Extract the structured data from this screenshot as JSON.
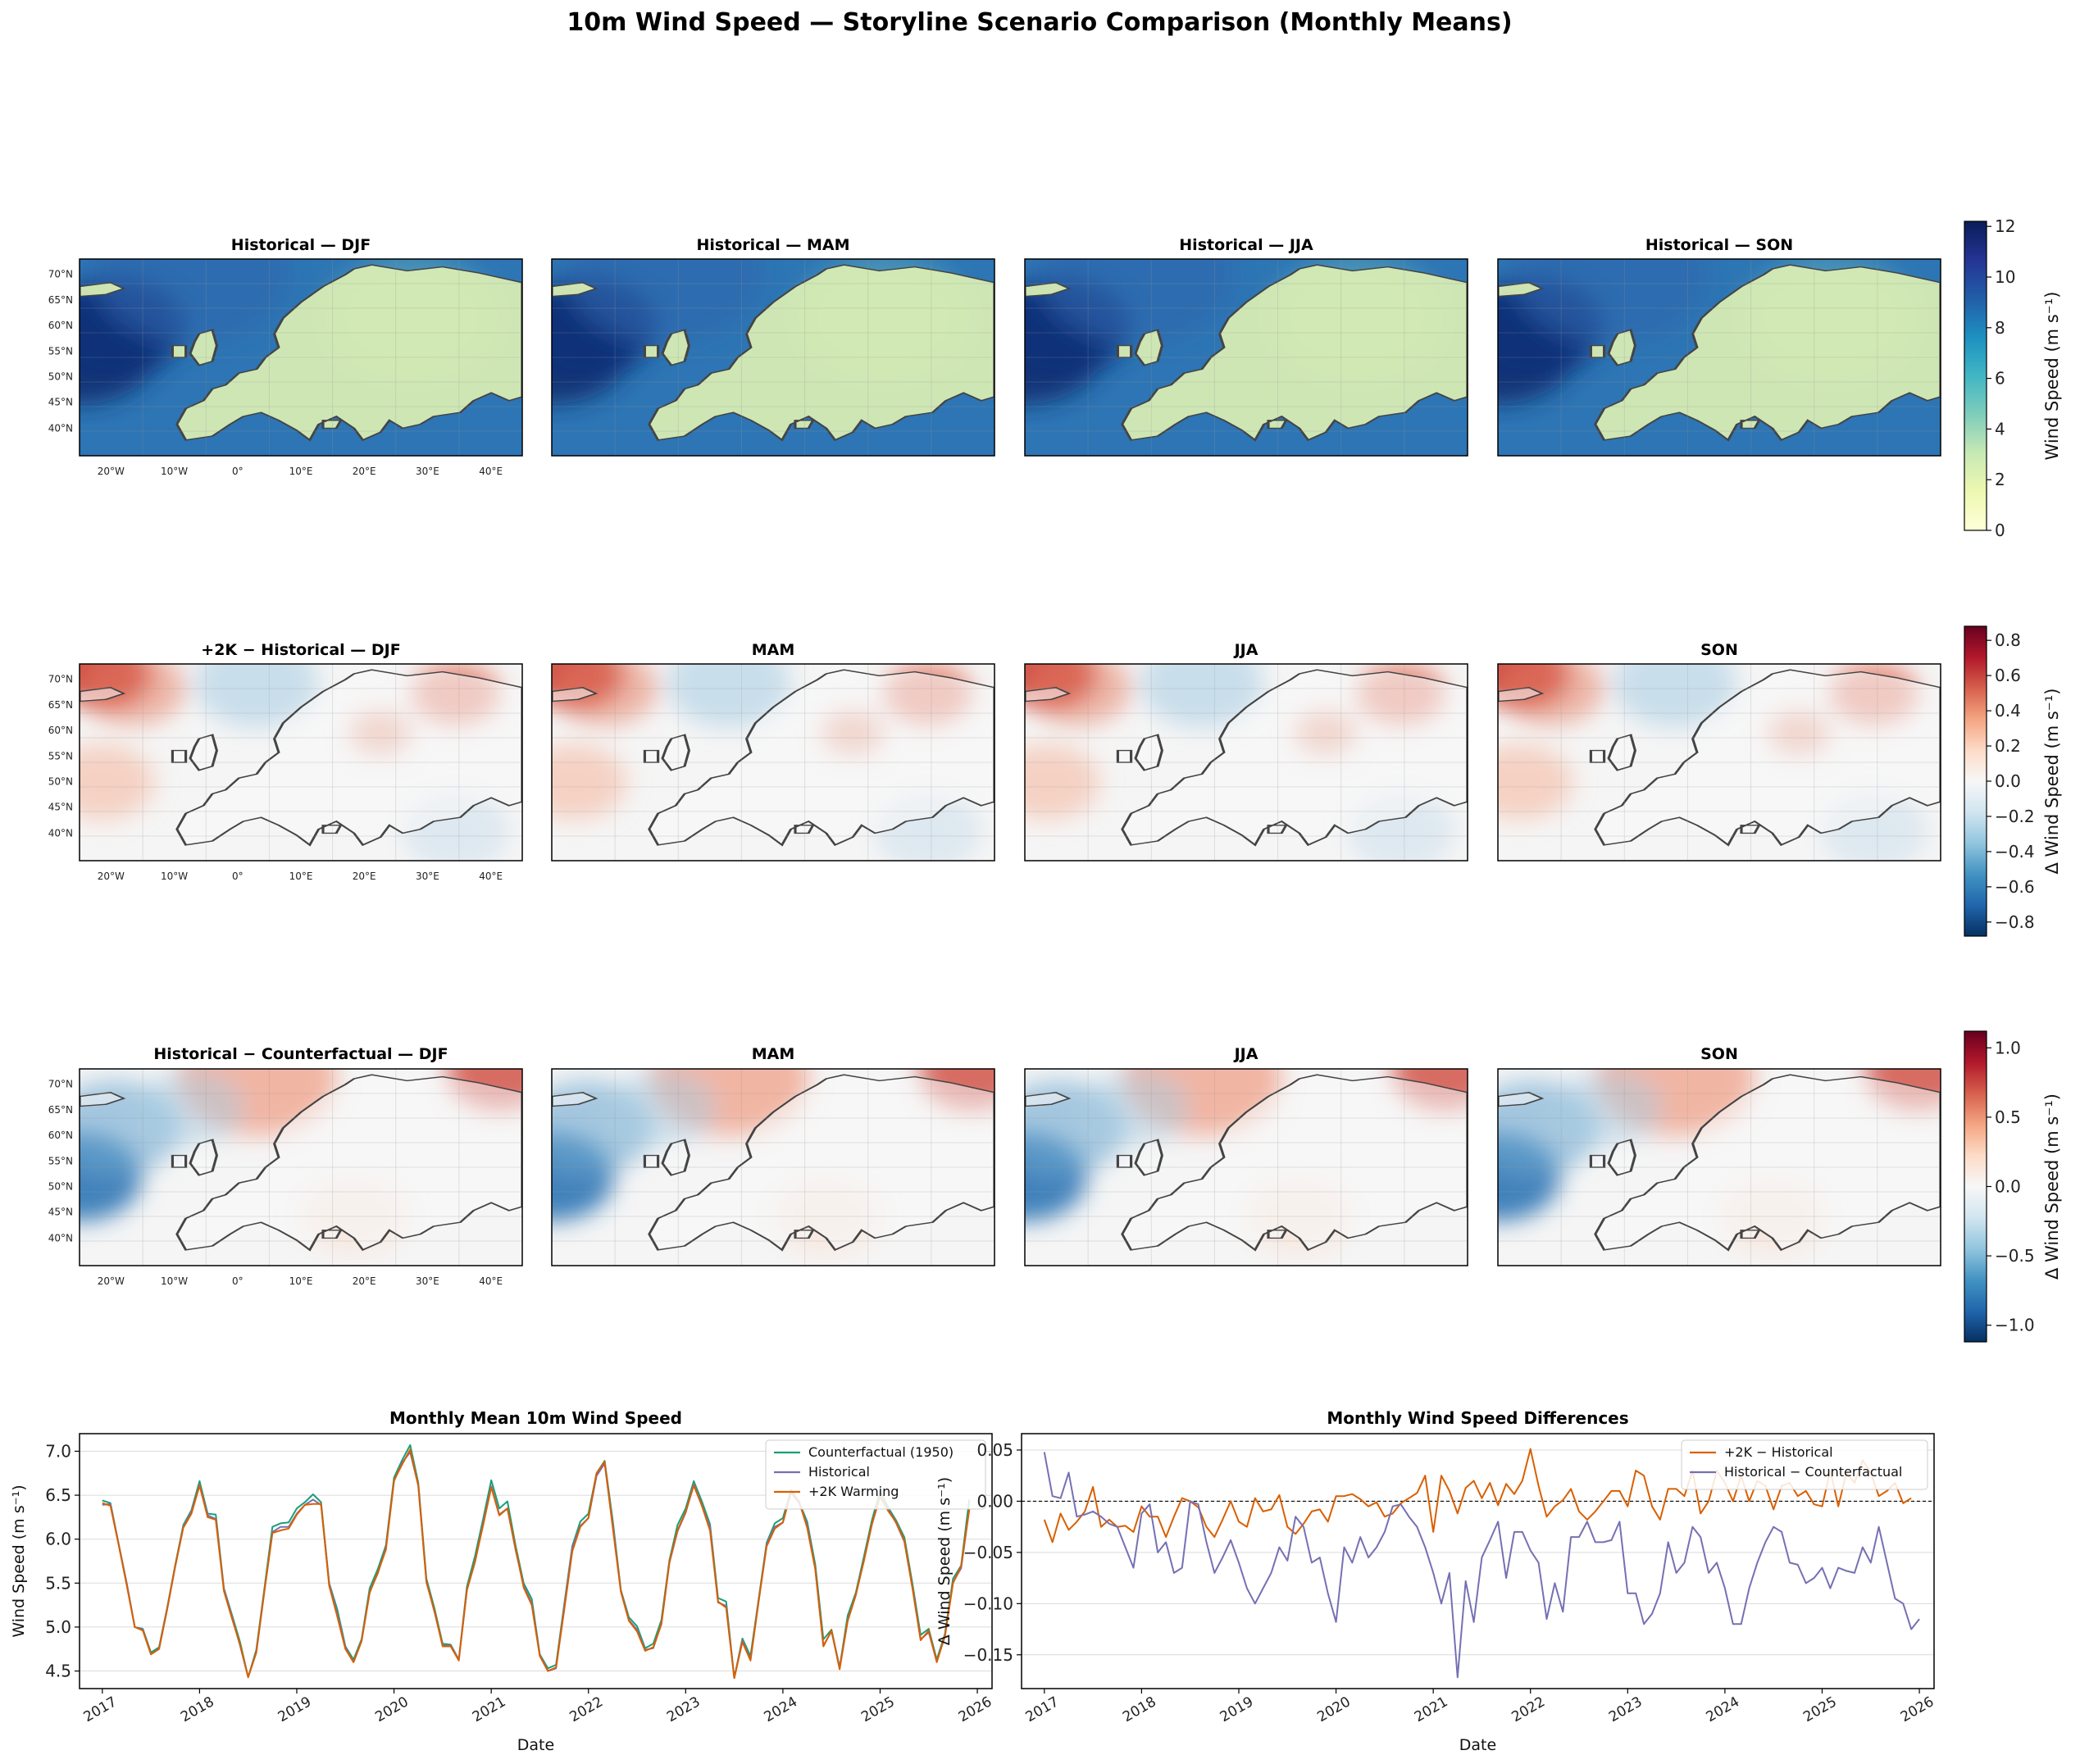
{
  "figure": {
    "suptitle": "10m Wind Speed — Storyline Scenario Comparison (Monthly Means)"
  },
  "map_rows": [
    {
      "id": "historical",
      "titles": [
        "Historical — DJF",
        "Historical — MAM",
        "Historical — JJA",
        "Historical — SON"
      ],
      "colormap": "YlGnBu",
      "colorbar": {
        "label": "Wind Speed (m s⁻¹)",
        "range": [
          0,
          12.2
        ],
        "ticks": [
          "0",
          "2",
          "4",
          "6",
          "8",
          "10",
          "12"
        ],
        "tick_values": [
          0,
          2,
          4,
          6,
          8,
          10,
          12
        ]
      }
    },
    {
      "id": "plus2k_minus_hist",
      "titles": [
        "+2K − Historical — DJF",
        "MAM",
        "JJA",
        "SON"
      ],
      "colormap": "RdBu_r",
      "colorbar": {
        "label": "Δ Wind Speed (m s⁻¹)",
        "range": [
          -0.88,
          0.88
        ],
        "ticks": [
          "−0.8",
          "−0.6",
          "−0.4",
          "−0.2",
          "0.0",
          "0.2",
          "0.4",
          "0.6",
          "0.8"
        ],
        "tick_values": [
          -0.8,
          -0.6,
          -0.4,
          -0.2,
          0,
          0.2,
          0.4,
          0.6,
          0.8
        ]
      }
    },
    {
      "id": "hist_minus_counterfactual",
      "titles": [
        "Historical − Counterfactual — DJF",
        "MAM",
        "JJA",
        "SON"
      ],
      "colormap": "RdBu_r",
      "colorbar": {
        "label": "Δ Wind Speed (m s⁻¹)",
        "range": [
          -1.12,
          1.12
        ],
        "ticks": [
          "−1.0",
          "−0.5",
          "0.0",
          "0.5",
          "1.0"
        ],
        "tick_values": [
          -1,
          -0.5,
          0,
          0.5,
          1
        ]
      }
    }
  ],
  "map_axes": {
    "lat_ticks": [
      "40°N",
      "45°N",
      "50°N",
      "55°N",
      "60°N",
      "65°N",
      "70°N"
    ],
    "lon_ticks": [
      "20°W",
      "10°W",
      "0°",
      "10°E",
      "20°E",
      "30°E",
      "40°E"
    ]
  },
  "chart_data": [
    {
      "type": "line",
      "title": "Monthly Mean 10m Wind Speed",
      "xlabel": "Date",
      "ylabel": "Wind Speed (m s⁻¹)",
      "x_tick_labels": [
        "2017",
        "2018",
        "2019",
        "2020",
        "2021",
        "2022",
        "2023",
        "2024",
        "2025",
        "2026"
      ],
      "y_ticks": [
        4.5,
        5.0,
        5.5,
        6.0,
        6.5,
        7.0
      ],
      "y_tick_labels": [
        "4.5",
        "5.0",
        "5.5",
        "6.0",
        "6.5",
        "7.0"
      ],
      "ylim": [
        4.3,
        7.2
      ],
      "x_start": "2017-01",
      "legend_location": "upper right",
      "series": [
        {
          "name": "Counterfactual (1950)",
          "color": "#1b9e77",
          "values": [
            6.44,
            6.41,
            5.95,
            5.5,
            5.0,
            4.98,
            4.71,
            4.77,
            5.22,
            5.71,
            6.16,
            6.33,
            6.66,
            6.29,
            6.28,
            5.44,
            5.14,
            4.83,
            4.43,
            4.74,
            5.44,
            6.14,
            6.18,
            6.19,
            6.35,
            6.42,
            6.51,
            6.42,
            5.5,
            5.2,
            4.78,
            4.63,
            4.86,
            5.44,
            5.66,
            5.93,
            6.7,
            6.9,
            7.07,
            6.64,
            5.55,
            5.21,
            4.81,
            4.8,
            4.63,
            5.46,
            5.81,
            6.23,
            6.67,
            6.35,
            6.43,
            5.93,
            5.5,
            5.32,
            4.69,
            4.53,
            4.57,
            5.25,
            5.92,
            6.2,
            6.29,
            6.75,
            6.89,
            6.21,
            5.42,
            5.11,
            5.01,
            4.76,
            4.81,
            5.08,
            5.76,
            6.16,
            6.35,
            6.66,
            6.43,
            6.17,
            5.33,
            5.29,
            4.42,
            4.87,
            4.67,
            5.31,
            5.96,
            6.18,
            6.24,
            6.56,
            6.42,
            6.2,
            5.71,
            4.86,
            4.97,
            4.54,
            5.13,
            5.39,
            5.8,
            6.22,
            6.55,
            6.36,
            6.21,
            6.02,
            5.49,
            4.91,
            4.98,
            4.63,
            4.92,
            5.55,
            5.7,
            6.45
          ]
        },
        {
          "name": "Historical",
          "color": "#7570b3",
          "values": [
            6.39,
            6.4,
            5.95,
            5.5,
            5.0,
            4.97,
            4.69,
            4.75,
            5.21,
            5.69,
            6.14,
            6.31,
            6.62,
            6.27,
            6.23,
            5.43,
            5.12,
            4.79,
            4.43,
            4.71,
            5.41,
            6.08,
            6.14,
            6.14,
            6.29,
            6.39,
            6.45,
            6.39,
            5.49,
            5.15,
            4.77,
            4.6,
            4.84,
            5.4,
            5.61,
            5.9,
            6.66,
            6.87,
            6.99,
            6.61,
            5.52,
            5.17,
            4.79,
            4.79,
            4.63,
            5.42,
            5.74,
            6.18,
            6.6,
            6.28,
            6.35,
            5.88,
            5.47,
            5.27,
            4.68,
            4.5,
            4.53,
            5.22,
            5.9,
            6.15,
            6.24,
            6.72,
            6.86,
            6.16,
            5.41,
            5.08,
            4.97,
            4.74,
            4.76,
            5.04,
            5.73,
            6.09,
            6.3,
            6.63,
            6.38,
            6.14,
            5.28,
            5.24,
            4.42,
            4.85,
            4.63,
            5.28,
            5.94,
            6.14,
            6.19,
            6.53,
            6.41,
            6.16,
            5.66,
            4.79,
            4.95,
            4.54,
            5.07,
            5.36,
            5.76,
            6.17,
            6.49,
            6.34,
            6.18,
            5.97,
            5.44,
            4.86,
            4.94,
            4.61,
            4.89,
            5.51,
            5.67,
            6.34
          ]
        },
        {
          "name": "+2K Warming",
          "color": "#d95f02",
          "values": [
            6.41,
            6.38,
            5.94,
            5.48,
            5.0,
            4.96,
            4.69,
            4.75,
            5.2,
            5.7,
            6.13,
            6.29,
            6.61,
            6.25,
            6.22,
            5.41,
            5.1,
            4.8,
            4.43,
            4.71,
            5.41,
            6.07,
            6.1,
            6.12,
            6.28,
            6.39,
            6.4,
            6.4,
            5.47,
            5.12,
            4.75,
            4.6,
            4.84,
            5.39,
            5.62,
            5.88,
            6.67,
            6.85,
            7.02,
            6.61,
            5.51,
            5.18,
            4.78,
            4.78,
            4.62,
            5.42,
            5.75,
            6.16,
            6.59,
            6.27,
            6.35,
            5.9,
            5.45,
            5.25,
            4.67,
            4.5,
            4.54,
            5.19,
            5.86,
            6.14,
            6.24,
            6.75,
            6.88,
            6.13,
            5.4,
            5.07,
            4.95,
            4.73,
            4.77,
            5.03,
            5.74,
            6.1,
            6.31,
            6.61,
            6.38,
            6.1,
            5.29,
            5.22,
            4.42,
            4.83,
            4.62,
            5.29,
            5.92,
            6.12,
            6.19,
            6.54,
            6.43,
            6.13,
            5.66,
            4.78,
            4.96,
            4.52,
            5.07,
            5.37,
            5.75,
            6.18,
            6.48,
            6.32,
            6.19,
            5.98,
            5.44,
            4.85,
            4.96,
            4.6,
            4.9,
            5.5,
            5.69,
            6.34
          ]
        }
      ]
    },
    {
      "type": "line",
      "title": "Monthly Wind Speed Differences",
      "xlabel": "Date",
      "ylabel": "Δ Wind Speed (m s⁻¹)",
      "x_tick_labels": [
        "2017",
        "2018",
        "2019",
        "2020",
        "2021",
        "2022",
        "2023",
        "2024",
        "2025",
        "2026"
      ],
      "y_ticks": [
        -0.15,
        -0.1,
        -0.05,
        0.0,
        0.05
      ],
      "y_tick_labels": [
        "−0.15",
        "−0.10",
        "−0.05",
        "0.00",
        "0.05"
      ],
      "ylim": [
        -0.183,
        0.066
      ],
      "x_start": "2017-01",
      "reference_line": 0,
      "legend_location": "upper right",
      "series": [
        {
          "name": "+2K − Historical",
          "color": "#d95f02",
          "values": [
            -0.018,
            -0.04,
            -0.012,
            -0.028,
            -0.02,
            -0.01,
            0.014,
            -0.025,
            -0.018,
            -0.025,
            -0.024,
            -0.03,
            -0.005,
            -0.015,
            -0.015,
            -0.035,
            -0.015,
            0.003,
            0.0,
            -0.006,
            -0.025,
            -0.035,
            -0.018,
            0.0,
            -0.02,
            -0.025,
            0.003,
            -0.01,
            -0.008,
            0.006,
            -0.025,
            -0.032,
            -0.022,
            -0.01,
            -0.008,
            -0.02,
            0.005,
            0.005,
            0.007,
            0.002,
            -0.005,
            -0.001,
            -0.015,
            -0.012,
            -0.002,
            0.003,
            0.008,
            0.025,
            -0.03,
            0.025,
            0.01,
            -0.012,
            0.013,
            0.02,
            0.003,
            0.018,
            -0.004,
            0.017,
            0.007,
            0.02,
            0.051,
            0.015,
            -0.015,
            -0.005,
            0.001,
            0.012,
            -0.01,
            -0.018,
            -0.01,
            0.0,
            0.01,
            0.01,
            -0.005,
            0.03,
            0.025,
            -0.005,
            -0.018,
            0.012,
            0.012,
            0.005,
            0.03,
            -0.012,
            0.0,
            0.03,
            0.018,
            0.0,
            0.025,
            0.0,
            0.02,
            0.015,
            -0.008,
            0.015,
            0.018,
            0.005,
            0.01,
            -0.003,
            -0.005,
            0.03,
            -0.005,
            0.028,
            0.018,
            0.04,
            0.028,
            0.005,
            0.01,
            0.018,
            -0.002,
            0.003
          ]
        },
        {
          "name": "Historical − Counterfactual",
          "color": "#7570b3",
          "values": [
            0.048,
            0.005,
            0.003,
            0.028,
            -0.015,
            -0.013,
            -0.01,
            -0.015,
            -0.022,
            -0.025,
            -0.045,
            -0.065,
            -0.012,
            -0.003,
            -0.05,
            -0.04,
            -0.07,
            -0.065,
            0.0,
            -0.003,
            -0.04,
            -0.07,
            -0.055,
            -0.038,
            -0.06,
            -0.085,
            -0.1,
            -0.085,
            -0.07,
            -0.045,
            -0.058,
            -0.015,
            -0.025,
            -0.06,
            -0.055,
            -0.09,
            -0.118,
            -0.045,
            -0.06,
            -0.035,
            -0.055,
            -0.045,
            -0.03,
            -0.005,
            -0.003,
            -0.015,
            -0.025,
            -0.045,
            -0.07,
            -0.1,
            -0.07,
            -0.172,
            -0.078,
            -0.118,
            -0.055,
            -0.038,
            -0.02,
            -0.075,
            -0.03,
            -0.03,
            -0.048,
            -0.06,
            -0.115,
            -0.08,
            -0.108,
            -0.035,
            -0.035,
            -0.02,
            -0.04,
            -0.04,
            -0.038,
            -0.02,
            -0.09,
            -0.09,
            -0.12,
            -0.11,
            -0.09,
            -0.04,
            -0.07,
            -0.06,
            -0.025,
            -0.035,
            -0.07,
            -0.06,
            -0.085,
            -0.12,
            -0.12,
            -0.085,
            -0.06,
            -0.04,
            -0.025,
            -0.03,
            -0.06,
            -0.062,
            -0.08,
            -0.075,
            -0.065,
            -0.085,
            -0.065,
            -0.068,
            -0.07,
            -0.045,
            -0.06,
            -0.025,
            -0.06,
            -0.095,
            -0.1,
            -0.125,
            -0.115
          ]
        }
      ]
    }
  ]
}
